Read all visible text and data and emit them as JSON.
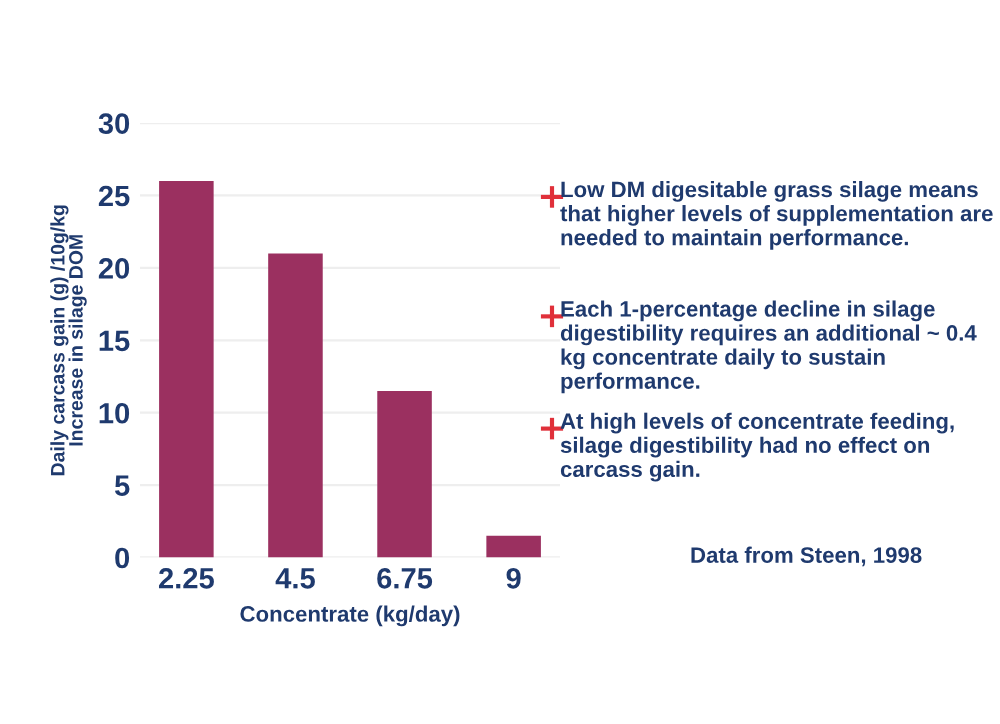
{
  "chart_data": {
    "type": "bar",
    "xlabel": "Concentrate (kg/day)",
    "ylabel": "Daily carcass gain (g) /10g/kg\nIncrease in silage DOM",
    "categories": [
      "2.25",
      "4.5",
      "6.75",
      "9"
    ],
    "values": [
      26,
      21,
      11.5,
      1.5
    ],
    "color": "#9b3060",
    "ylim": [
      0,
      30
    ],
    "yticks": [
      0,
      5,
      10,
      15,
      20,
      25,
      30
    ],
    "grid": "y",
    "annotations": [
      "Low DM digesitable grass silage means that higher levels of supplementation are needed to maintain performance.",
      "Each 1-percentage decline in silage digestibility requires an additional ~ 0.4 kg concentrate daily to sustain performance.",
      "At high levels of concentrate feeding, silage digestibility had no effect on carcass gain.",
      "Data from Steen, 1998"
    ]
  }
}
